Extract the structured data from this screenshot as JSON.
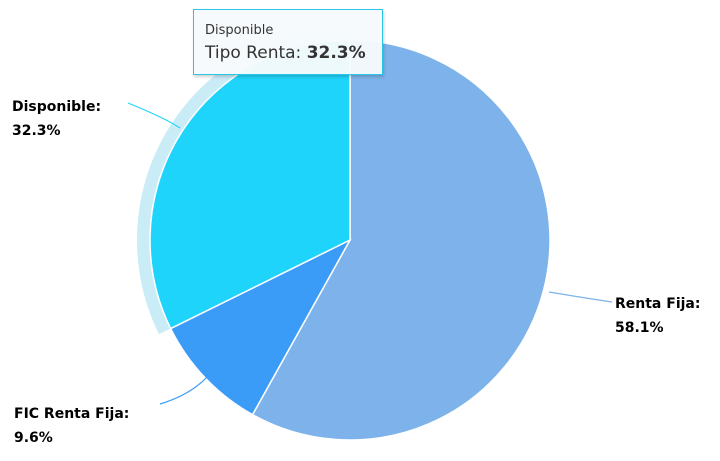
{
  "chart_data": {
    "type": "pie",
    "title": "",
    "slices": [
      {
        "name": "Renta Fija",
        "value": 58.1,
        "label": "Renta Fija:",
        "value_label": "58.1%",
        "color": "#7db3ea",
        "connector_color": "#7db3ea"
      },
      {
        "name": "FIC Renta Fija",
        "value": 9.6,
        "label": "FIC Renta Fija:",
        "value_label": "9.6%",
        "color": "#3b9cf7",
        "connector_color": "#3b9cf7"
      },
      {
        "name": "Disponible",
        "value": 32.3,
        "label": "Disponible:",
        "value_label": "32.3%",
        "color": "#1fd4fb",
        "connector_color": "#1fd4fb",
        "hovered": true
      }
    ],
    "hover_halo_color": "#c9ecf7"
  },
  "tooltip": {
    "title": "Disponible",
    "series_label": "Tipo Renta:",
    "value": "32.3%"
  }
}
